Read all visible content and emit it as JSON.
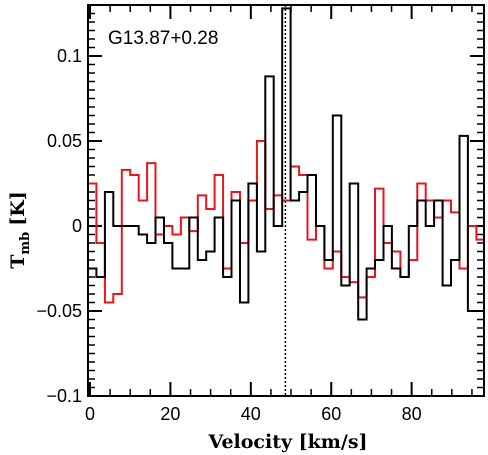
{
  "chart_data": {
    "type": "line",
    "style": "step",
    "annotation": "G13.87+0.28",
    "xlabel": "Velocity [km/s]",
    "ylabel_main": "T",
    "ylabel_sub": "mb",
    "ylabel_unit": "[K]",
    "xlim": [
      -0.5,
      98
    ],
    "ylim": [
      -0.1,
      0.13
    ],
    "x_ticks": [
      0,
      20,
      40,
      60,
      80
    ],
    "x_tick_labels": [
      "0",
      "20",
      "40",
      "60",
      "80"
    ],
    "y_ticks": [
      -0.1,
      -0.05,
      0,
      0.05,
      0.1
    ],
    "y_tick_labels": [
      "−0.1",
      "−0.05",
      "0",
      "0.05",
      "0.1"
    ],
    "vertical_line_x": 48.6,
    "grid": false,
    "series": [
      {
        "color": "#000000",
        "x": [
          -0.5,
          1.6,
          3.7,
          5.8,
          7.9,
          10.0,
          12.1,
          14.2,
          16.3,
          18.4,
          20.5,
          22.6,
          24.7,
          26.8,
          28.9,
          31.0,
          33.1,
          35.2,
          37.3,
          39.4,
          41.5,
          43.6,
          45.7,
          47.8,
          49.9,
          52.0,
          54.1,
          56.2,
          58.3,
          60.4,
          62.5,
          64.6,
          66.7,
          68.8,
          70.9,
          73.0,
          75.1,
          77.2,
          79.3,
          81.4,
          83.5,
          85.6,
          87.7,
          89.8,
          91.9,
          94.0,
          96.1
        ],
        "y": [
          -0.025,
          -0.03,
          0.02,
          0.0,
          0.0,
          0.0,
          -0.005,
          -0.01,
          0.005,
          -0.01,
          -0.025,
          -0.025,
          0.005,
          -0.02,
          -0.015,
          0.005,
          -0.03,
          0.015,
          -0.045,
          0.025,
          -0.015,
          0.088,
          0.0,
          0.128,
          0.015,
          0.02,
          0.03,
          0.0,
          -0.02,
          0.065,
          -0.035,
          0.025,
          -0.055,
          -0.025,
          -0.02,
          0.0,
          -0.025,
          -0.03,
          0.0,
          0.015,
          0.0,
          0.015,
          -0.035,
          -0.02,
          0.053,
          -0.05,
          -0.05
        ]
      },
      {
        "color": "#e8151d",
        "x": [
          -0.5,
          1.6,
          3.7,
          5.8,
          7.9,
          10.0,
          12.1,
          14.2,
          16.3,
          18.4,
          20.5,
          22.6,
          24.7,
          26.8,
          28.9,
          31.0,
          33.1,
          35.2,
          37.3,
          39.4,
          41.5,
          43.6,
          45.7,
          47.8,
          49.9,
          52.0,
          54.1,
          56.2,
          58.3,
          60.4,
          62.5,
          64.6,
          66.7,
          68.8,
          70.9,
          73.0,
          75.1,
          77.2,
          79.3,
          81.4,
          83.5,
          85.6,
          87.7,
          89.8,
          91.9,
          94.0,
          96.1
        ],
        "y": [
          0.025,
          -0.01,
          -0.045,
          -0.04,
          0.033,
          0.03,
          0.015,
          0.037,
          -0.005,
          0.0,
          -0.005,
          0.005,
          -0.003,
          0.018,
          0.01,
          0.03,
          -0.025,
          0.02,
          -0.01,
          0.015,
          0.05,
          0.01,
          0.018,
          0.015,
          0.035,
          0.03,
          -0.008,
          0.0,
          -0.025,
          -0.015,
          -0.03,
          -0.033,
          -0.042,
          -0.03,
          0.022,
          -0.01,
          -0.015,
          -0.03,
          -0.02,
          0.025,
          0.015,
          0.005,
          0.015,
          0.008,
          -0.025,
          0.0,
          -0.008
        ]
      }
    ]
  }
}
